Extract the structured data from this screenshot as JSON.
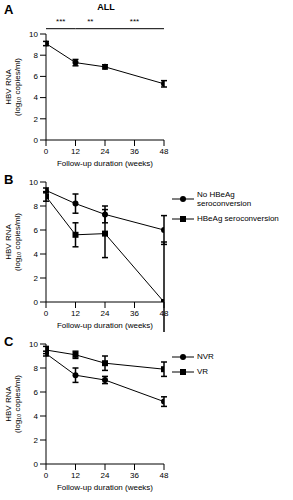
{
  "chart_data": [
    {
      "type": "line",
      "panel_label": "A",
      "title": "ALL",
      "xlabel": "Follow-up duration (weeks)",
      "ylabel": "HBV RNA (log₁₀ copies/ml)",
      "x": [
        0,
        12,
        24,
        48
      ],
      "xlim": [
        0,
        48
      ],
      "xticks": [
        0,
        12,
        24,
        36,
        48
      ],
      "ylim": [
        0,
        10
      ],
      "yticks": [
        0,
        2,
        4,
        6,
        8,
        10
      ],
      "series": [
        {
          "color": "#000000",
          "marker": "circle",
          "values": [
            9.1,
            7.3,
            6.9,
            5.3
          ],
          "errors": [
            0.2,
            0.3,
            0.2,
            0.3
          ]
        }
      ],
      "annotations": [
        {
          "text": "***",
          "x": [
            0,
            12
          ]
        },
        {
          "text": "**",
          "x": [
            12,
            24
          ]
        },
        {
          "text": "***",
          "x": [
            24,
            48
          ]
        }
      ]
    },
    {
      "type": "line",
      "panel_label": "B",
      "xlabel": "Follow-up duration (weeks)",
      "ylabel": "HBV RNA (log₁₀ copies/ml)",
      "x": [
        0,
        12,
        24,
        48
      ],
      "xlim": [
        0,
        48
      ],
      "xticks": [
        0,
        12,
        24,
        36,
        48
      ],
      "ylim": [
        0,
        10
      ],
      "yticks": [
        0,
        2,
        4,
        6,
        8,
        10
      ],
      "legend": "right",
      "series": [
        {
          "name": "No HBeAg seroconversion",
          "color": "#000000",
          "marker": "circle",
          "values": [
            9.3,
            8.2,
            7.3,
            6.0
          ],
          "errors": [
            0.2,
            0.8,
            0.7,
            1.2
          ]
        },
        {
          "name": "HBeAg seroconversion",
          "color": "#000000",
          "marker": "square",
          "values": [
            8.8,
            5.6,
            5.7,
            0
          ],
          "errors": [
            0.4,
            1.0,
            2.0,
            5.0
          ]
        }
      ]
    },
    {
      "type": "line",
      "panel_label": "C",
      "xlabel": "Follow-up duration (weeks)",
      "ylabel": "HBV RNA (log₁₀ copies/ml)",
      "x": [
        0,
        12,
        24,
        48
      ],
      "xlim": [
        0,
        48
      ],
      "xticks": [
        0,
        12,
        24,
        36,
        48
      ],
      "ylim": [
        0,
        10
      ],
      "yticks": [
        0,
        2,
        4,
        6,
        8,
        10
      ],
      "legend": "right",
      "series": [
        {
          "name": "NVR",
          "color": "#000000",
          "marker": "circle",
          "values": [
            9.2,
            7.4,
            7.0,
            5.2
          ],
          "errors": [
            0.2,
            0.6,
            0.3,
            0.4
          ]
        },
        {
          "name": "VR",
          "color": "#000000",
          "marker": "square",
          "values": [
            9.5,
            9.1,
            8.4,
            7.9
          ],
          "errors": [
            0.3,
            0.3,
            0.6,
            0.6
          ]
        }
      ]
    }
  ]
}
